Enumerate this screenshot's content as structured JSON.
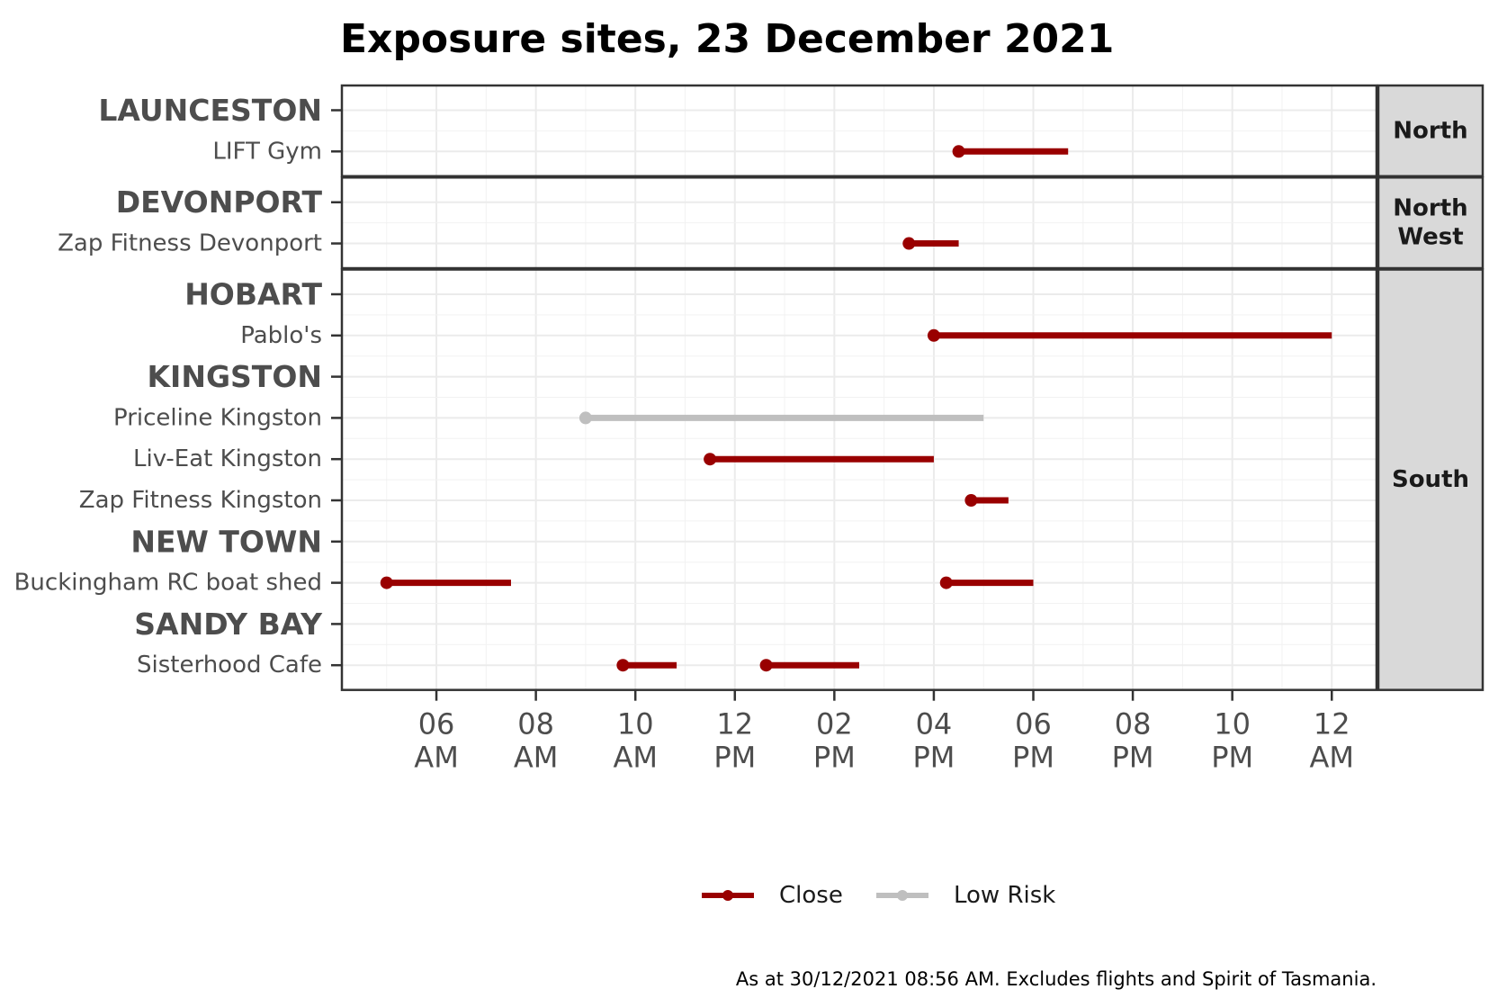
{
  "chart_data": {
    "type": "timeline-dumbbell",
    "title": "Exposure sites, 23 December 2021",
    "caption": "As at 30/12/2021 08:56 AM. Excludes flights and Spirit of Tasmania.",
    "x_axis": {
      "unit": "hour of day",
      "range": [
        4.1,
        24.9
      ],
      "ticks": [
        {
          "hour": 6,
          "time": "06",
          "ampm": "AM"
        },
        {
          "hour": 8,
          "time": "08",
          "ampm": "AM"
        },
        {
          "hour": 10,
          "time": "10",
          "ampm": "AM"
        },
        {
          "hour": 12,
          "time": "12",
          "ampm": "PM"
        },
        {
          "hour": 14,
          "time": "02",
          "ampm": "PM"
        },
        {
          "hour": 16,
          "time": "04",
          "ampm": "PM"
        },
        {
          "hour": 18,
          "time": "06",
          "ampm": "PM"
        },
        {
          "hour": 20,
          "time": "08",
          "ampm": "PM"
        },
        {
          "hour": 22,
          "time": "10",
          "ampm": "PM"
        },
        {
          "hour": 24,
          "time": "12",
          "ampm": "AM"
        }
      ],
      "grid": true
    },
    "legend": {
      "position": "bottom",
      "entries": [
        {
          "label": "Close",
          "color": "#990000"
        },
        {
          "label": "Low Risk",
          "color": "#bfbfbf"
        }
      ]
    },
    "panels": [
      {
        "label": "North",
        "label_lines": [
          "North"
        ],
        "rows": [
          {
            "label": "LAUNCESTON",
            "kind": "location"
          },
          {
            "label": "LIFT Gym",
            "kind": "site",
            "segments": [
              {
                "start": 16.5,
                "end": 18.7,
                "risk": "Close"
              }
            ]
          }
        ]
      },
      {
        "label": "North West",
        "label_lines": [
          "North",
          "West"
        ],
        "rows": [
          {
            "label": "DEVONPORT",
            "kind": "location"
          },
          {
            "label": "Zap Fitness Devonport",
            "kind": "site",
            "segments": [
              {
                "start": 15.5,
                "end": 16.5,
                "risk": "Close"
              }
            ]
          }
        ]
      },
      {
        "label": "South",
        "label_lines": [
          "South"
        ],
        "rows": [
          {
            "label": "HOBART",
            "kind": "location"
          },
          {
            "label": "Pablo's",
            "kind": "site",
            "segments": [
              {
                "start": 16.0,
                "end": 24.0,
                "risk": "Close"
              }
            ]
          },
          {
            "label": "KINGSTON",
            "kind": "location"
          },
          {
            "label": "Priceline Kingston",
            "kind": "site",
            "segments": [
              {
                "start": 9.0,
                "end": 17.0,
                "risk": "Low Risk"
              }
            ]
          },
          {
            "label": "Liv-Eat Kingston",
            "kind": "site",
            "segments": [
              {
                "start": 11.5,
                "end": 16.0,
                "risk": "Close"
              }
            ]
          },
          {
            "label": "Zap Fitness Kingston",
            "kind": "site",
            "segments": [
              {
                "start": 16.75,
                "end": 17.5,
                "risk": "Close"
              }
            ]
          },
          {
            "label": "NEW TOWN",
            "kind": "location"
          },
          {
            "label": "Buckingham RC boat shed",
            "kind": "site",
            "segments": [
              {
                "start": 5.0,
                "end": 7.5,
                "risk": "Close"
              },
              {
                "start": 16.25,
                "end": 18.0,
                "risk": "Close"
              }
            ]
          },
          {
            "label": "SANDY BAY",
            "kind": "location"
          },
          {
            "label": "Sisterhood Cafe",
            "kind": "site",
            "segments": [
              {
                "start": 9.75,
                "end": 10.83,
                "risk": "Close"
              },
              {
                "start": 12.63,
                "end": 14.5,
                "risk": "Close"
              }
            ]
          }
        ]
      }
    ]
  }
}
